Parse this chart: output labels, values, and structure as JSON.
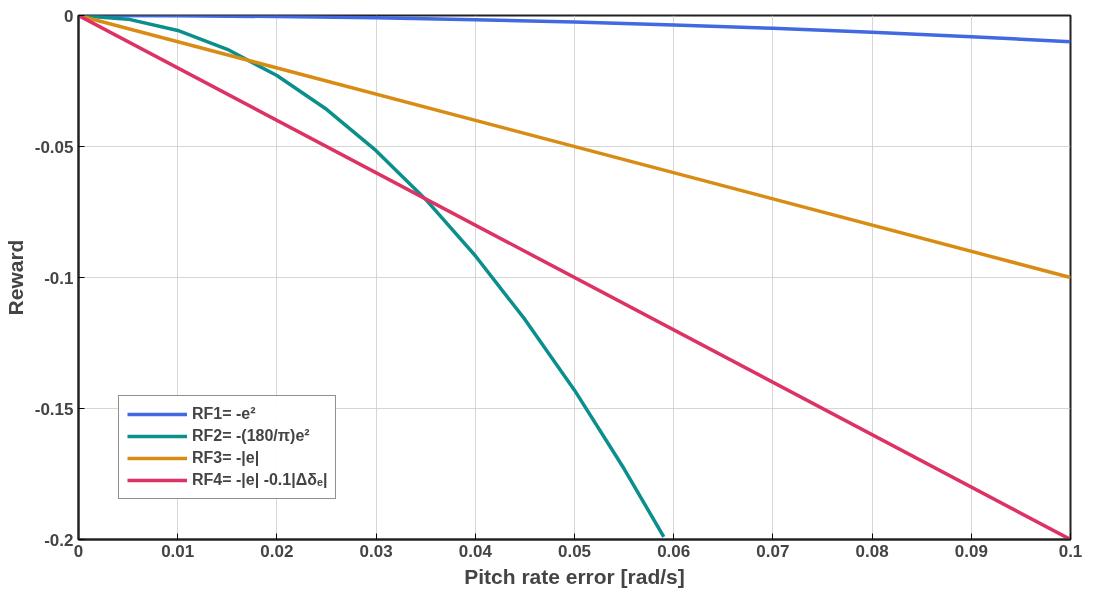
{
  "chart_data": {
    "type": "line",
    "xlabel": "Pitch rate error [rad/s]",
    "ylabel": "Reward",
    "xlim": [
      0,
      0.1
    ],
    "ylim": [
      -0.2,
      0
    ],
    "xticks": [
      0,
      0.01,
      0.02,
      0.03,
      0.04,
      0.05,
      0.06,
      0.07,
      0.08,
      0.09,
      0.1
    ],
    "yticks": [
      0,
      -0.05,
      -0.1,
      -0.15,
      -0.2
    ],
    "grid": true,
    "legend": "bottom left",
    "line_style": "solid",
    "marker": "none",
    "series": [
      {
        "name": "RF1= -e²",
        "color": "#4169e1",
        "x": [
          0,
          0.01,
          0.02,
          0.03,
          0.04,
          0.05,
          0.06,
          0.07,
          0.08,
          0.09,
          0.1
        ],
        "values": [
          0,
          -0.0001,
          -0.0004,
          -0.0009,
          -0.0016,
          -0.0025,
          -0.0036,
          -0.0049,
          -0.0064,
          -0.0081,
          -0.01
        ]
      },
      {
        "name": "RF2= -(180/π)e²",
        "color": "#0a8f8c",
        "x": [
          0,
          0.005,
          0.01,
          0.015,
          0.02,
          0.025,
          0.03,
          0.035,
          0.04,
          0.045,
          0.05,
          0.055,
          0.059
        ],
        "values": [
          0,
          -0.0014,
          -0.0057,
          -0.0129,
          -0.0229,
          -0.0358,
          -0.0516,
          -0.0702,
          -0.0917,
          -0.116,
          -0.143,
          -0.173,
          -0.199
        ]
      },
      {
        "name": "RF3= -|e|",
        "color": "#d98c14",
        "x": [
          0,
          0.1
        ],
        "values": [
          0,
          -0.1
        ]
      },
      {
        "name": "RF4= -|e| -0.1|Δδₑ|",
        "color": "#dc3264",
        "x": [
          0,
          0.1
        ],
        "values": [
          0,
          -0.2
        ]
      }
    ]
  }
}
